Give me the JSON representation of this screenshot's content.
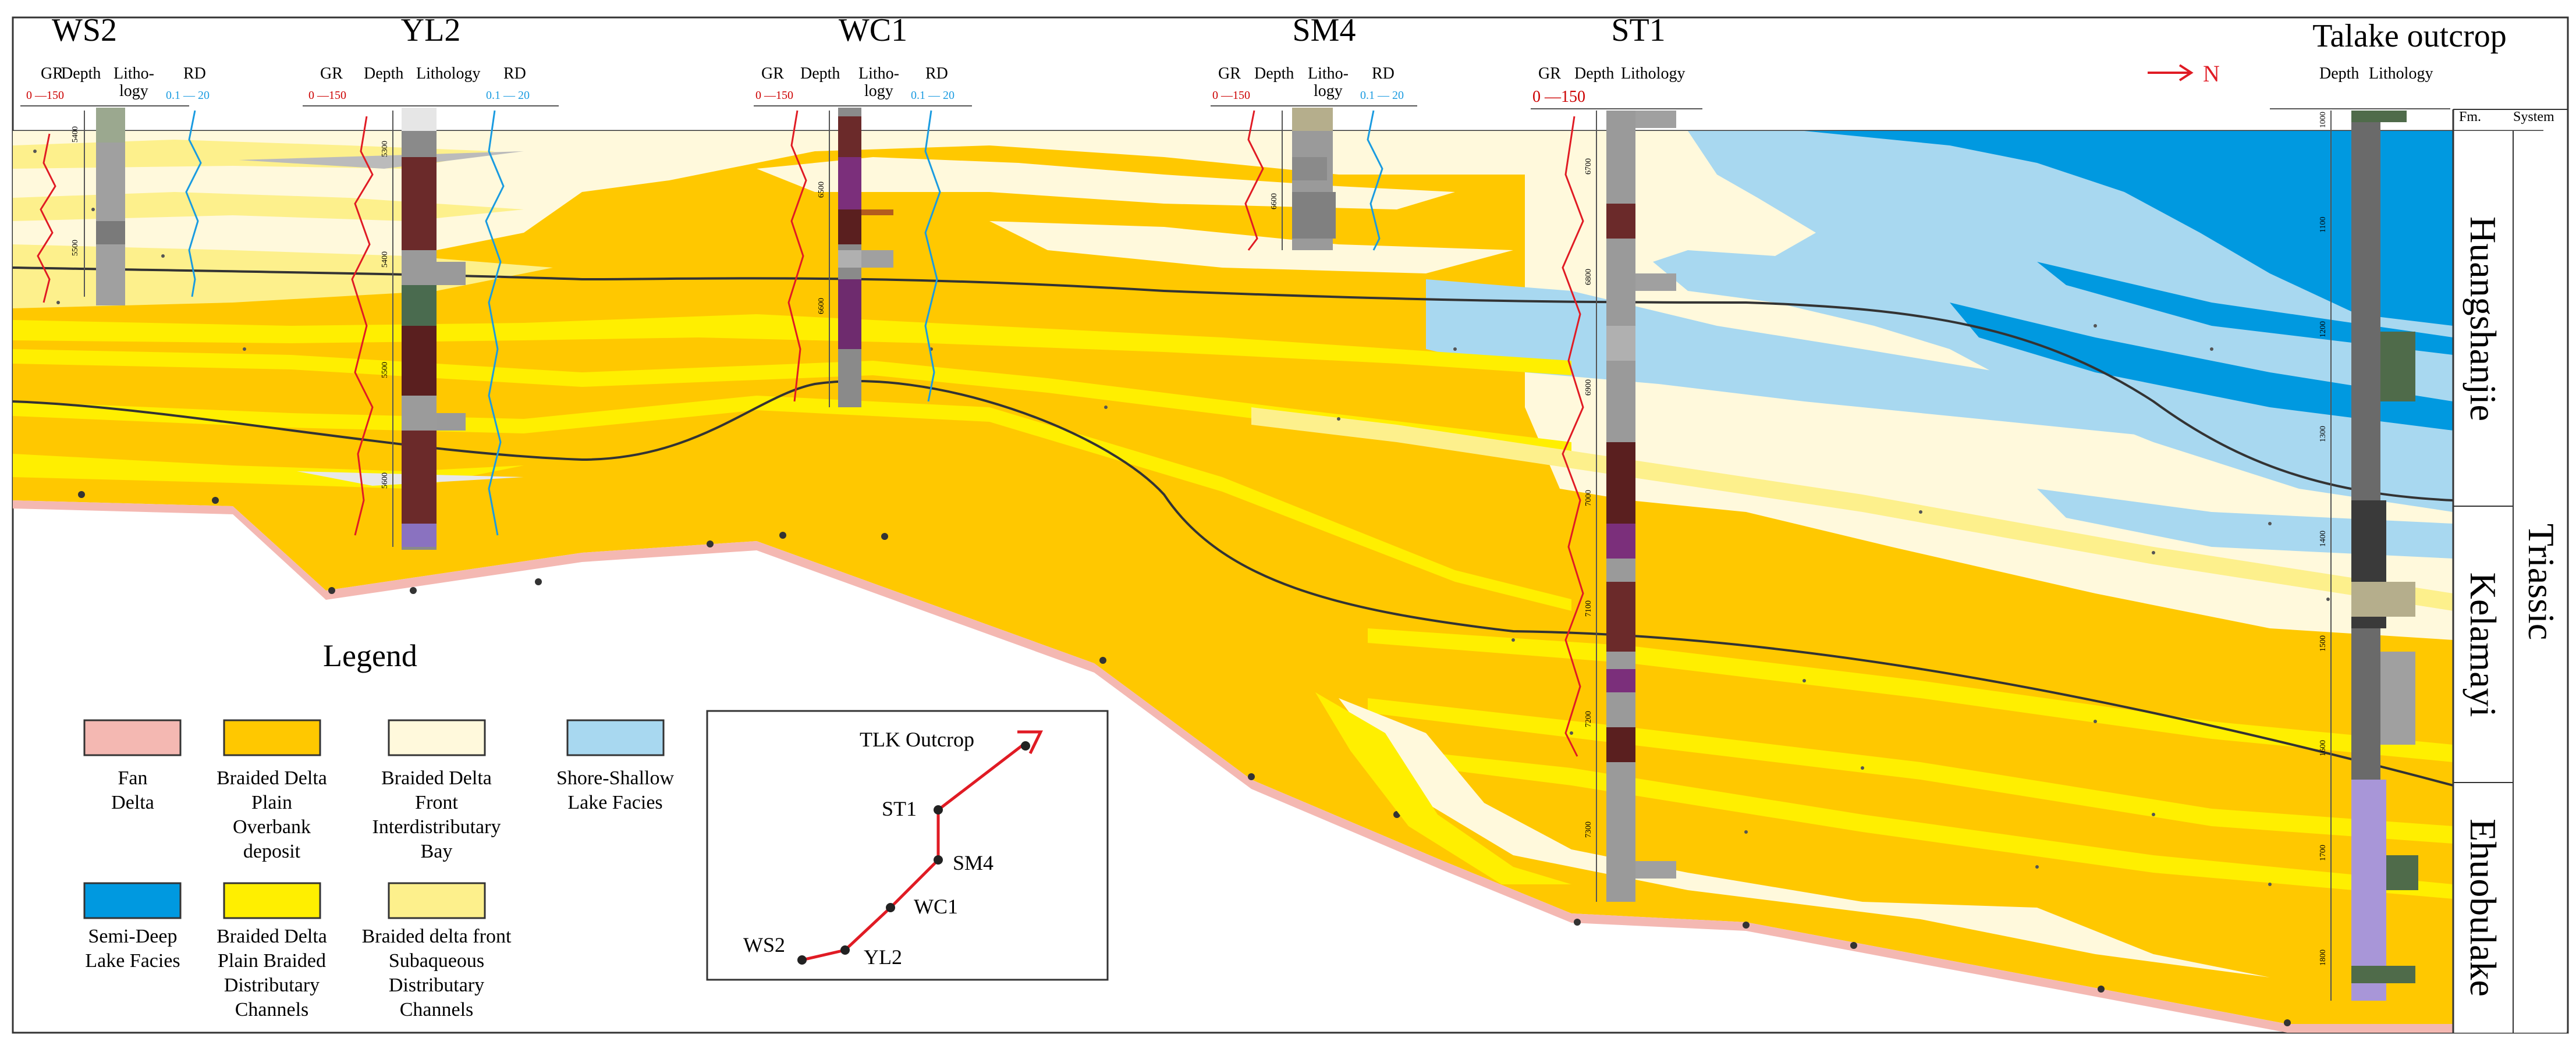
{
  "wells": [
    {
      "name": "WS2",
      "hdr": [
        "GR",
        "Depth",
        "Litho-",
        "logy",
        "RD"
      ],
      "gr": "0 —150",
      "rd": "0.1 — 20",
      "depths": [
        "5400",
        "5500"
      ]
    },
    {
      "name": "YL2",
      "hdr": [
        "GR",
        "Depth",
        "Lithology",
        "RD"
      ],
      "gr": "0 —150",
      "rd": "0.1 — 20",
      "depths": [
        "5300",
        "5400",
        "5500",
        "5600"
      ]
    },
    {
      "name": "WC1",
      "hdr": [
        "GR",
        "Depth",
        "Litho-",
        "logy",
        "RD"
      ],
      "gr": "0 —150",
      "rd": "0.1 — 20",
      "depths": [
        "6500",
        "6600"
      ]
    },
    {
      "name": "SM4",
      "hdr": [
        "GR",
        "Depth",
        "Litho-",
        "logy",
        "RD"
      ],
      "gr": "0 —150",
      "rd": "0.1 — 20",
      "depths": [
        "6600"
      ]
    },
    {
      "name": "ST1",
      "hdr": [
        "GR",
        "Depth",
        "Lithology"
      ],
      "gr": "0 —150",
      "rd": "",
      "depths": [
        "6700",
        "6800",
        "6900",
        "7000",
        "7100",
        "7200",
        "7300"
      ]
    }
  ],
  "outcrop": {
    "title": "Talake outcrop",
    "hdr": [
      "Depth",
      "Lithology"
    ],
    "depths": [
      "1000",
      "1100",
      "1200",
      "1300",
      "1400",
      "1500",
      "1600",
      "1700",
      "1800"
    ]
  },
  "north_label": "N",
  "stratigraphy": {
    "fm_header": "Fm.",
    "system_header": "System",
    "formations": [
      "Huangshanjie",
      "Kelamayi",
      "Ehuobulake"
    ],
    "system": "Triassic"
  },
  "legend": {
    "title": "Legend",
    "items": [
      {
        "color": "#f4b8b2",
        "lines": [
          "Fan",
          "Delta"
        ]
      },
      {
        "color": "#ffc800",
        "lines": [
          "Braided Delta",
          "Plain",
          "Overbank",
          "deposit"
        ]
      },
      {
        "color": "#fff9dc",
        "lines": [
          "Braided Delta",
          "Front",
          "Interdistributary",
          "Bay"
        ]
      },
      {
        "color": "#a8d8f0",
        "lines": [
          "Shore-Shallow",
          "Lake Facies"
        ]
      },
      {
        "color": "#0099e0",
        "lines": [
          "Semi-Deep",
          "Lake Facies"
        ]
      },
      {
        "color": "#ffef00",
        "lines": [
          "Braided Delta",
          "Plain Braided",
          "Distributary",
          "Channels"
        ]
      },
      {
        "color": "#fdf08c",
        "lines": [
          "Braided  delta front",
          "Subaqueous",
          "Distributary",
          "Channels"
        ]
      }
    ]
  },
  "map": {
    "labels": [
      "TLK Outcrop",
      "ST1",
      "SM4",
      "WC1",
      "WS2",
      "YL2"
    ]
  },
  "colors": {
    "fan": "#f4b8b2",
    "overbank": "#ffc800",
    "bay": "#fff9dc",
    "shore": "#a8d8f0",
    "deep": "#0099e0",
    "channel": "#ffef00",
    "subaq": "#fdf08c",
    "route": "#e01b24",
    "frame": "#333333"
  }
}
